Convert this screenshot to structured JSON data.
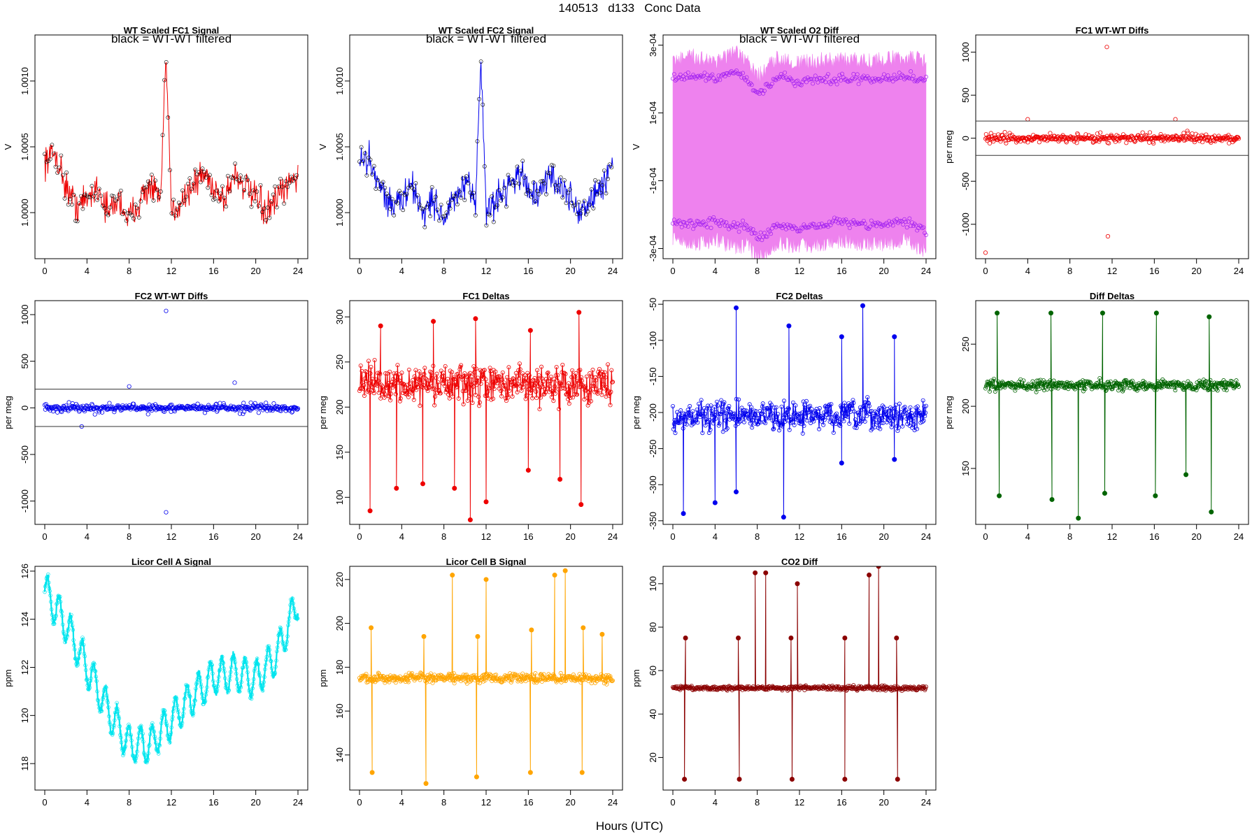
{
  "page": {
    "title": "140513   d133   Conc Data",
    "xlabel": "Hours (UTC)"
  },
  "chart_data": [
    {
      "id": "fc1-signal",
      "type": "line",
      "title": "WT Scaled FC1 Signal",
      "subtitle": "black = WT-WT filtered",
      "ylabel": "V",
      "xlim": [
        0,
        24
      ],
      "xticks": [
        0,
        4,
        8,
        12,
        16,
        20,
        24
      ],
      "ylim": [
        0.99965,
        1.00135
      ],
      "yticks": [
        1.0,
        1.0005,
        1.001
      ],
      "ytick_labels": [
        "1.0000",
        "1.0005",
        "1.0010"
      ],
      "color": "#ee0000",
      "marker_color": "#000000",
      "series": [
        {
          "name": "FC1 signal",
          "x": [
            0,
            1,
            2,
            3,
            4,
            5,
            6,
            7,
            8,
            9,
            10,
            11,
            11.5,
            12,
            13,
            14,
            15,
            16,
            17,
            18,
            19,
            20,
            21,
            22,
            23,
            24
          ],
          "y": [
            1.0004,
            1.00045,
            1.0002,
            1.00005,
            1.0001,
            1.0002,
            1.0,
            1.0001,
            0.99995,
            1.0001,
            1.0002,
            1.0001,
            1.0012,
            1.0,
            1.0001,
            1.0002,
            1.0003,
            1.0002,
            1.0001,
            1.0003,
            1.0002,
            1.0001,
            1.0,
            1.0001,
            1.0002,
            1.0003
          ]
        }
      ]
    },
    {
      "id": "fc2-signal",
      "type": "line",
      "title": "WT Scaled FC2 Signal",
      "subtitle": "black = WT-WT filtered",
      "ylabel": "V",
      "xlim": [
        0,
        24
      ],
      "xticks": [
        0,
        4,
        8,
        12,
        16,
        20,
        24
      ],
      "ylim": [
        0.99965,
        1.00135
      ],
      "yticks": [
        1.0,
        1.0005,
        1.001
      ],
      "ytick_labels": [
        "1.0000",
        "1.0005",
        "1.0010"
      ],
      "color": "#0000ee",
      "marker_color": "#000000",
      "series": [
        {
          "name": "FC2 signal",
          "x": [
            0,
            1,
            2,
            3,
            4,
            5,
            6,
            7,
            8,
            9,
            10,
            11,
            11.5,
            12,
            13,
            14,
            15,
            16,
            17,
            18,
            19,
            20,
            21,
            22,
            23,
            24
          ],
          "y": [
            1.0004,
            1.0004,
            1.0002,
            1.00005,
            1.0001,
            1.0002,
            1.0,
            1.0001,
            0.99995,
            1.0001,
            1.0002,
            1.0001,
            1.0012,
            1.0,
            1.0001,
            1.0002,
            1.0003,
            1.0002,
            1.0001,
            1.0003,
            1.0002,
            1.0001,
            1.0,
            1.0001,
            1.0002,
            1.0004
          ]
        }
      ]
    },
    {
      "id": "o2-diff",
      "type": "line",
      "title": "WT Scaled O2 Diff",
      "subtitle": "black = WT-WT filtered",
      "ylabel": "V",
      "xlim": [
        0,
        24
      ],
      "xticks": [
        0,
        4,
        8,
        12,
        16,
        20,
        24
      ],
      "ylim": [
        -0.00033,
        0.00033
      ],
      "yticks": [
        -0.0003,
        -0.0001,
        0.0001,
        0.0003
      ],
      "ytick_labels": [
        "-3e-04",
        "-1e-04",
        "1e-04",
        "3e-04"
      ],
      "color": "#ee82ee",
      "marker_color": "#a020f0",
      "series": [
        {
          "name": "upper",
          "x": [
            0,
            2,
            4,
            6,
            7,
            8,
            10,
            12,
            14,
            16,
            18,
            20,
            22,
            24
          ],
          "y": [
            0.0002,
            0.00021,
            0.0002,
            0.00022,
            0.0002,
            0.00015,
            0.00021,
            0.00019,
            0.0002,
            0.0002,
            0.0002,
            0.0002,
            0.00021,
            0.0002
          ]
        },
        {
          "name": "lower",
          "x": [
            0,
            2,
            4,
            6,
            7,
            8,
            10,
            12,
            14,
            16,
            18,
            20,
            22,
            24
          ],
          "y": [
            -0.00022,
            -0.00023,
            -0.00022,
            -0.00024,
            -0.00023,
            -0.00027,
            -0.00023,
            -0.00024,
            -0.00023,
            -0.00022,
            -0.00023,
            -0.00023,
            -0.00022,
            -0.00025
          ]
        }
      ]
    },
    {
      "id": "fc1-wtwt",
      "type": "scatter",
      "title": "FC1 WT-WT Diffs",
      "ylabel": "per meg",
      "xlim": [
        0,
        24
      ],
      "xticks": [
        0,
        4,
        8,
        12,
        16,
        20,
        24
      ],
      "ylim": [
        -1400,
        1200
      ],
      "yticks": [
        -1000,
        -500,
        0,
        500,
        1000
      ],
      "ytick_labels": [
        "-1000",
        "-500",
        "0",
        "500",
        "1000"
      ],
      "hlines": [
        200,
        -200
      ],
      "color": "#ee0000",
      "outliers": [
        {
          "x": 0,
          "y": -1330
        },
        {
          "x": 11.5,
          "y": 1060
        },
        {
          "x": 11.6,
          "y": -1140
        },
        {
          "x": 4,
          "y": 220
        },
        {
          "x": 18,
          "y": 220
        }
      ],
      "spread": 100
    },
    {
      "id": "fc2-wtwt",
      "type": "scatter",
      "title": "FC2 WT-WT Diffs",
      "ylabel": "per meg",
      "xlim": [
        0,
        24
      ],
      "xticks": [
        0,
        4,
        8,
        12,
        16,
        20,
        24
      ],
      "ylim": [
        -1250,
        1150
      ],
      "yticks": [
        -1000,
        -500,
        0,
        500,
        1000
      ],
      "ytick_labels": [
        "-1000",
        "-500",
        "0",
        "500",
        "1000"
      ],
      "hlines": [
        200,
        -200
      ],
      "color": "#0000ee",
      "outliers": [
        {
          "x": 11.5,
          "y": 1040
        },
        {
          "x": 11.5,
          "y": -1120
        },
        {
          "x": 18,
          "y": 270
        },
        {
          "x": 3.5,
          "y": -200
        },
        {
          "x": 8,
          "y": 230
        }
      ],
      "spread": 90
    },
    {
      "id": "fc1-deltas",
      "type": "line",
      "title": "FC1 Deltas",
      "ylabel": "per meg",
      "xlim": [
        0,
        24
      ],
      "xticks": [
        0,
        4,
        8,
        12,
        16,
        20,
        24
      ],
      "ylim": [
        70,
        318
      ],
      "yticks": [
        100,
        150,
        200,
        250,
        300
      ],
      "ytick_labels": [
        "100",
        "150",
        "200",
        "250",
        "300"
      ],
      "color": "#ee0000",
      "base": 225,
      "spread": 30,
      "spikes": [
        {
          "x": 1,
          "y": 85
        },
        {
          "x": 3.5,
          "y": 110
        },
        {
          "x": 6,
          "y": 115
        },
        {
          "x": 9,
          "y": 110
        },
        {
          "x": 10.5,
          "y": 75
        },
        {
          "x": 12,
          "y": 95
        },
        {
          "x": 16,
          "y": 130
        },
        {
          "x": 19,
          "y": 120
        },
        {
          "x": 21,
          "y": 92
        },
        {
          "x": 2,
          "y": 290
        },
        {
          "x": 7,
          "y": 295
        },
        {
          "x": 11,
          "y": 298
        },
        {
          "x": 16.2,
          "y": 285
        },
        {
          "x": 20.8,
          "y": 305
        }
      ]
    },
    {
      "id": "fc2-deltas",
      "type": "line",
      "title": "FC2 Deltas",
      "ylabel": "per meg",
      "xlim": [
        0,
        24
      ],
      "xticks": [
        0,
        4,
        8,
        12,
        16,
        20,
        24
      ],
      "ylim": [
        -355,
        -45
      ],
      "yticks": [
        -350,
        -300,
        -250,
        -200,
        -150,
        -100,
        -50
      ],
      "ytick_labels": [
        "-350",
        "-300",
        "-250",
        "-200",
        "-150",
        "-100",
        "-50"
      ],
      "color": "#0000ee",
      "base": -205,
      "spread": 30,
      "spikes": [
        {
          "x": 1,
          "y": -340
        },
        {
          "x": 4,
          "y": -325
        },
        {
          "x": 6,
          "y": -310
        },
        {
          "x": 10.5,
          "y": -345
        },
        {
          "x": 16,
          "y": -270
        },
        {
          "x": 21,
          "y": -265
        },
        {
          "x": 6,
          "y": -55
        },
        {
          "x": 11,
          "y": -80
        },
        {
          "x": 16,
          "y": -95
        },
        {
          "x": 18,
          "y": -52
        },
        {
          "x": 21,
          "y": -95
        }
      ]
    },
    {
      "id": "diff-deltas",
      "type": "line",
      "title": "Diff Deltas",
      "ylabel": "per meg",
      "xlim": [
        0,
        24
      ],
      "xticks": [
        0,
        4,
        8,
        12,
        16,
        20,
        24
      ],
      "ylim": [
        105,
        285
      ],
      "yticks": [
        150,
        200,
        250
      ],
      "ytick_labels": [
        "150",
        "200",
        "250"
      ],
      "color": "#006400",
      "base": 217,
      "spread": 6,
      "spikes": [
        {
          "x": 1.1,
          "y": 275
        },
        {
          "x": 6.2,
          "y": 275
        },
        {
          "x": 11.1,
          "y": 275
        },
        {
          "x": 16.2,
          "y": 275
        },
        {
          "x": 21.2,
          "y": 272
        },
        {
          "x": 1.3,
          "y": 128
        },
        {
          "x": 6.3,
          "y": 125
        },
        {
          "x": 8.8,
          "y": 110
        },
        {
          "x": 11.3,
          "y": 130
        },
        {
          "x": 16.1,
          "y": 128
        },
        {
          "x": 19,
          "y": 145
        },
        {
          "x": 21.4,
          "y": 115
        }
      ]
    },
    {
      "id": "licor-a",
      "type": "line",
      "title": "Licor Cell A Signal",
      "ylabel": "ppm",
      "xlim": [
        0,
        24
      ],
      "xticks": [
        0,
        4,
        8,
        12,
        16,
        20,
        24
      ],
      "ylim": [
        116.9,
        126.2
      ],
      "yticks": [
        118,
        120,
        122,
        124,
        126
      ],
      "ytick_labels": [
        "118",
        "120",
        "122",
        "124",
        "126"
      ],
      "color": "#00e5ee",
      "trend": {
        "x": [
          0,
          2,
          4,
          6,
          8,
          10,
          12,
          14,
          16,
          18,
          20,
          22,
          24
        ],
        "y": [
          125.2,
          123.8,
          122.0,
          120.2,
          118.8,
          118.8,
          119.8,
          120.8,
          121.6,
          121.8,
          121.5,
          122.5,
          124.8
        ]
      },
      "oscillation_amplitude": 1.2
    },
    {
      "id": "licor-b",
      "type": "line",
      "title": "Licor Cell B Signal",
      "ylabel": "ppm",
      "xlim": [
        0,
        24
      ],
      "xticks": [
        0,
        4,
        8,
        12,
        16,
        20,
        24
      ],
      "ylim": [
        124,
        226
      ],
      "yticks": [
        140,
        160,
        180,
        200,
        220
      ],
      "ytick_labels": [
        "140",
        "160",
        "180",
        "200",
        "220"
      ],
      "color": "#ffa500",
      "base": 175,
      "spread": 3,
      "spikes": [
        {
          "x": 1.1,
          "y": 198
        },
        {
          "x": 6.1,
          "y": 194
        },
        {
          "x": 11.2,
          "y": 194
        },
        {
          "x": 16.3,
          "y": 197
        },
        {
          "x": 21.2,
          "y": 198
        },
        {
          "x": 1.2,
          "y": 132
        },
        {
          "x": 6.3,
          "y": 127
        },
        {
          "x": 11.1,
          "y": 130
        },
        {
          "x": 16.2,
          "y": 132
        },
        {
          "x": 21.1,
          "y": 132
        },
        {
          "x": 8.8,
          "y": 222
        },
        {
          "x": 12,
          "y": 220
        },
        {
          "x": 18.5,
          "y": 222
        },
        {
          "x": 19.5,
          "y": 224
        },
        {
          "x": 23,
          "y": 195
        }
      ]
    },
    {
      "id": "co2-diff",
      "type": "line",
      "title": "CO2 Diff",
      "ylabel": "ppm",
      "xlim": [
        0,
        24
      ],
      "xticks": [
        0,
        4,
        8,
        12,
        16,
        20,
        24
      ],
      "ylim": [
        5,
        108
      ],
      "yticks": [
        20,
        40,
        60,
        80,
        100
      ],
      "ytick_labels": [
        "20",
        "40",
        "60",
        "80",
        "100"
      ],
      "color": "#8b0000",
      "base": 52,
      "spread": 1.5,
      "spikes": [
        {
          "x": 1.2,
          "y": 75
        },
        {
          "x": 6.2,
          "y": 75
        },
        {
          "x": 11.2,
          "y": 75
        },
        {
          "x": 16.3,
          "y": 75
        },
        {
          "x": 21.2,
          "y": 75
        },
        {
          "x": 1.1,
          "y": 10
        },
        {
          "x": 6.3,
          "y": 10
        },
        {
          "x": 11.3,
          "y": 10
        },
        {
          "x": 16.3,
          "y": 10
        },
        {
          "x": 21.3,
          "y": 10
        },
        {
          "x": 7.8,
          "y": 105
        },
        {
          "x": 8.8,
          "y": 105
        },
        {
          "x": 11.8,
          "y": 100
        },
        {
          "x": 18.6,
          "y": 104
        },
        {
          "x": 19.5,
          "y": 108
        }
      ]
    }
  ]
}
